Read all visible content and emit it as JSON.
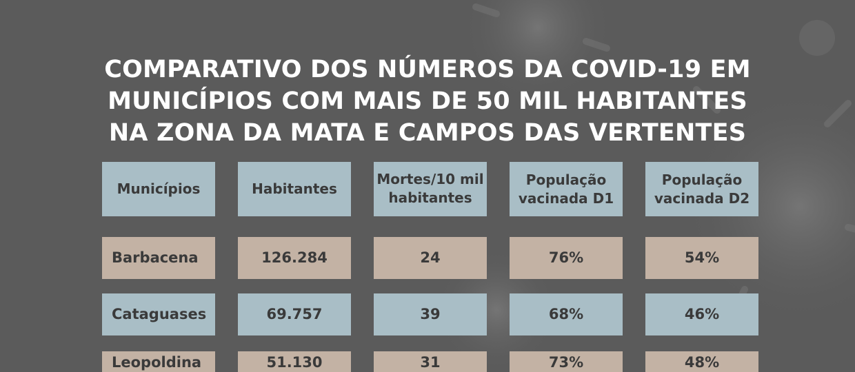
{
  "title_lines": [
    "COMPARATIVO DOS NÚMEROS DA COVID-19 EM",
    "MUNICÍPIOS COM MAIS DE 50 MIL HABITANTES",
    "NA ZONA DA MATA E CAMPOS DAS VERTENTES"
  ],
  "headers": [
    "Municípios",
    "Habitantes",
    "Mortes/10 mil habitantes",
    "População vacinada D1",
    "População vacinada D2"
  ],
  "rows": [
    {
      "cells": [
        "Barbacena",
        "126.284",
        "24",
        "76%",
        "54%"
      ],
      "color": "#c3b2a4"
    },
    {
      "cells": [
        "Cataguases",
        "69.757",
        "39",
        "68%",
        "46%"
      ],
      "color": "#a9bec6"
    },
    {
      "cells": [
        "Leopoldina",
        "51.130",
        "31",
        "73%",
        "48%"
      ],
      "color": "#c3b2a4"
    }
  ],
  "colors": {
    "background": "#5b5b5b",
    "header_cell": "#a9bec6",
    "row_tan": "#c3b2a4",
    "row_blue": "#a9bec6",
    "text": "#3a3a3a",
    "title": "#ffffff"
  },
  "decorations": [
    "coronavirus-illustration"
  ]
}
